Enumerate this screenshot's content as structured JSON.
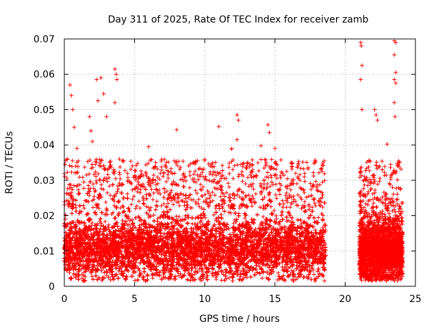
{
  "chart_data": {
    "type": "scatter",
    "title": "Day 311 of 2025, Rate Of TEC Index for receiver zamb",
    "xlabel": "GPS time / hours",
    "ylabel": "ROTI / TECUs",
    "xlim": [
      0,
      25
    ],
    "ylim": [
      0,
      0.07
    ],
    "xticks": [
      "0",
      "5",
      "10",
      "15",
      "20",
      "25"
    ],
    "yticks": [
      "0",
      "0.01",
      "0.02",
      "0.03",
      "0.04",
      "0.05",
      "0.06",
      "0.07"
    ],
    "grid": true,
    "marker": "+",
    "color": "#ff0000",
    "series": [
      {
        "segments": [
          {
            "x_range": [
              0.0,
              18.6
            ],
            "y_median": 0.0105,
            "y_low": 0.003,
            "y_high": 0.021
          },
          {
            "x_range": [
              21.0,
              24.1
            ],
            "y_median": 0.01,
            "y_low": 0.002,
            "y_high": 0.022
          }
        ],
        "outliers": [
          {
            "x": 0.2,
            "y": 0.036
          },
          {
            "x": 0.4,
            "y": 0.057
          },
          {
            "x": 0.5,
            "y": 0.054
          },
          {
            "x": 0.6,
            "y": 0.05
          },
          {
            "x": 0.7,
            "y": 0.045
          },
          {
            "x": 0.9,
            "y": 0.039
          },
          {
            "x": 1.8,
            "y": 0.048
          },
          {
            "x": 1.9,
            "y": 0.044
          },
          {
            "x": 2.0,
            "y": 0.041
          },
          {
            "x": 2.3,
            "y": 0.0585
          },
          {
            "x": 2.4,
            "y": 0.0525
          },
          {
            "x": 2.6,
            "y": 0.059
          },
          {
            "x": 2.8,
            "y": 0.0545
          },
          {
            "x": 3.0,
            "y": 0.048
          },
          {
            "x": 3.6,
            "y": 0.0615
          },
          {
            "x": 3.7,
            "y": 0.06
          },
          {
            "x": 3.75,
            "y": 0.0585
          },
          {
            "x": 3.6,
            "y": 0.052
          },
          {
            "x": 6.0,
            "y": 0.0395
          },
          {
            "x": 8.0,
            "y": 0.0443
          },
          {
            "x": 11.0,
            "y": 0.0452
          },
          {
            "x": 12.3,
            "y": 0.0485
          },
          {
            "x": 12.4,
            "y": 0.047
          },
          {
            "x": 12.3,
            "y": 0.0415
          },
          {
            "x": 14.0,
            "y": 0.0398
          },
          {
            "x": 14.5,
            "y": 0.0457
          },
          {
            "x": 14.6,
            "y": 0.0435
          },
          {
            "x": 15.0,
            "y": 0.039
          },
          {
            "x": 21.1,
            "y": 0.069
          },
          {
            "x": 21.15,
            "y": 0.068
          },
          {
            "x": 21.2,
            "y": 0.0625
          },
          {
            "x": 21.1,
            "y": 0.0585
          },
          {
            "x": 21.2,
            "y": 0.05
          },
          {
            "x": 22.1,
            "y": 0.05
          },
          {
            "x": 22.2,
            "y": 0.0485
          },
          {
            "x": 22.3,
            "y": 0.047
          },
          {
            "x": 23.5,
            "y": 0.0695
          },
          {
            "x": 23.6,
            "y": 0.069
          },
          {
            "x": 23.5,
            "y": 0.0655
          },
          {
            "x": 23.6,
            "y": 0.0605
          },
          {
            "x": 23.5,
            "y": 0.0585
          },
          {
            "x": 23.6,
            "y": 0.0575
          },
          {
            "x": 23.5,
            "y": 0.052
          },
          {
            "x": 23.55,
            "y": 0.048
          }
        ]
      }
    ]
  }
}
